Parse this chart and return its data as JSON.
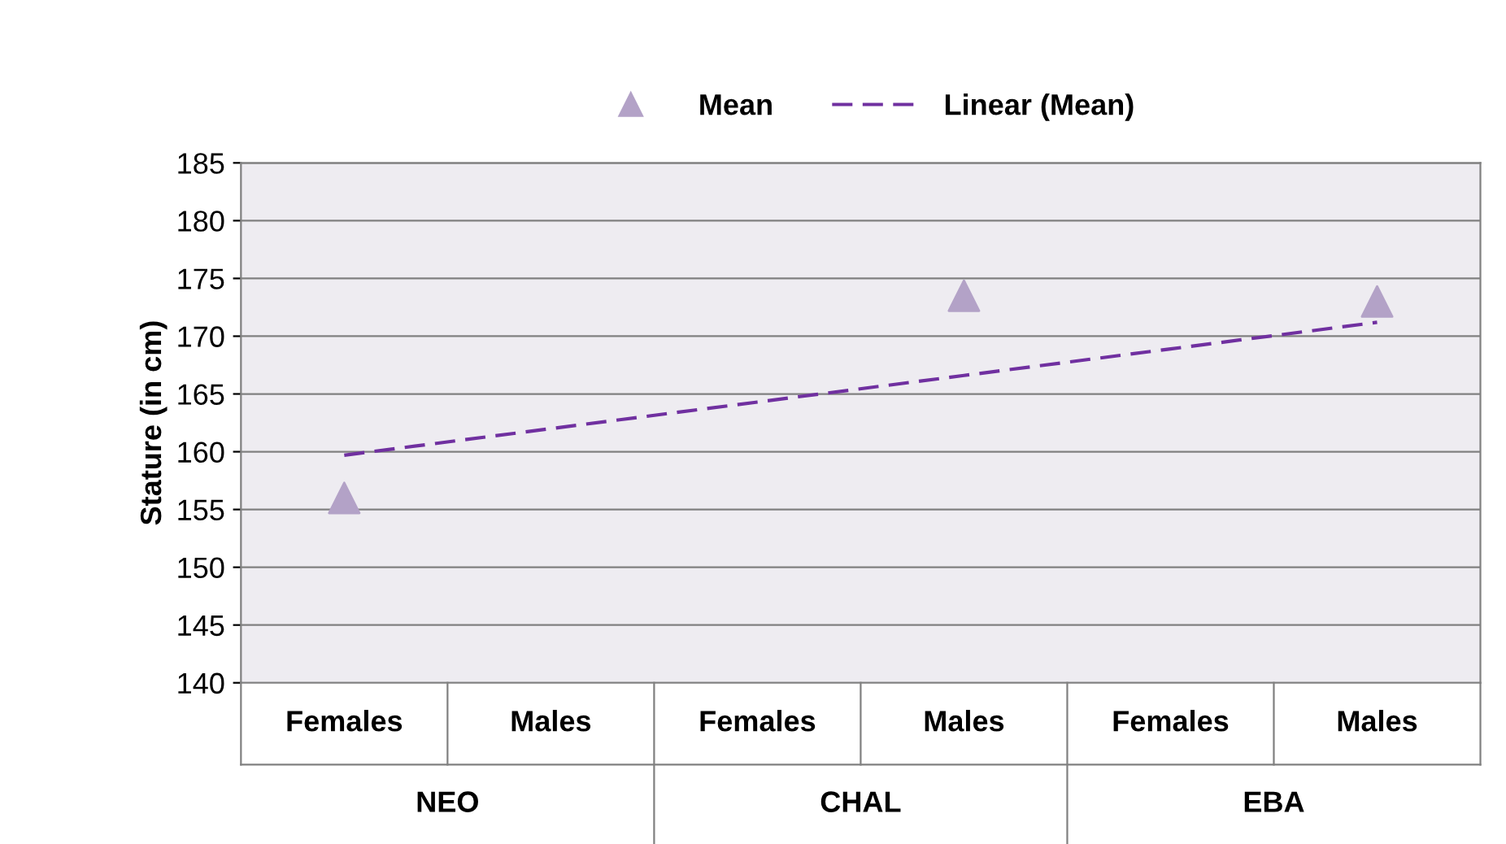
{
  "chart_data": {
    "type": "scatter",
    "ylabel": "Stature (in cm)",
    "categories": [
      "Females",
      "Males",
      "Females",
      "Males",
      "Females",
      "Males"
    ],
    "annotations": [
      "NEO",
      "CHAL",
      "EBA"
    ],
    "series": [
      {
        "name": "Mean",
        "color": "#b3a2c7",
        "marker": "triangle",
        "values": [
          156,
          null,
          null,
          173.5,
          null,
          173
        ]
      },
      {
        "name": "Linear (Mean)",
        "type": "line",
        "color": "#7030a0",
        "line_style": "dashed",
        "marker": "none",
        "values": [
          159.7,
          162.0,
          164.3,
          166.6,
          168.9,
          171.2
        ]
      }
    ],
    "ylim": [
      140,
      185
    ],
    "yticks": [
      140,
      145,
      150,
      155,
      160,
      165,
      170,
      175,
      180,
      185
    ],
    "grid": "y",
    "legend": "top"
  }
}
